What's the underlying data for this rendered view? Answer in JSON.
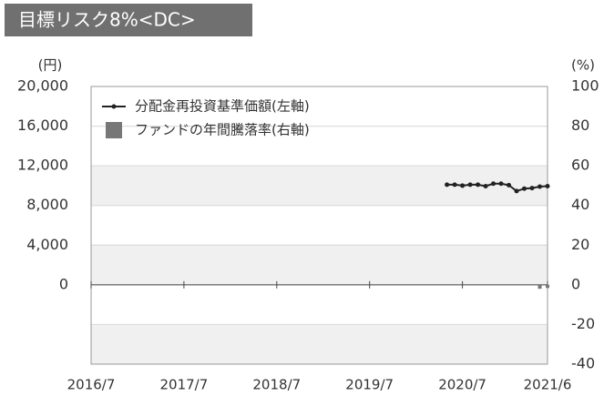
{
  "chart_data": {
    "type": "line",
    "title": "目標リスク8%<DC>",
    "y_label": "(円)",
    "y2_label": "(%)",
    "xlim": [
      "2016/7",
      "2021/6"
    ],
    "xticks": [
      "2016/7",
      "2017/7",
      "2018/7",
      "2019/7",
      "2020/7",
      "2021/6"
    ],
    "ylim": [
      -8000,
      20000
    ],
    "yticks": [
      0,
      {
        "value": 4000,
        "label": "4,000"
      },
      {
        "value": 8000,
        "label": "8,000"
      },
      {
        "value": 12000,
        "label": "12,000"
      },
      {
        "value": 16000,
        "label": "16,000"
      },
      {
        "value": 20000,
        "label": "20,000"
      }
    ],
    "y2lim": [
      -40,
      100
    ],
    "y2ticks": [
      -40,
      -20,
      0,
      20,
      40,
      60,
      80,
      100
    ],
    "grid": true,
    "legend": "top-left",
    "series": [
      {
        "name": "分配金再投資基準価額(左軸)",
        "type": "line",
        "color": "#222222",
        "x": [
          "2020/5",
          "2020/6",
          "2020/7",
          "2020/8",
          "2020/9",
          "2020/10",
          "2020/11",
          "2020/12",
          "2021/1",
          "2021/2",
          "2021/3",
          "2021/4",
          "2021/5",
          "2021/6"
        ],
        "values": [
          10100,
          10100,
          10000,
          10100,
          10100,
          9950,
          10200,
          10200,
          10050,
          9450,
          9700,
          9750,
          9900,
          9950
        ]
      },
      {
        "name": "ファンドの年間騰落率(右軸)",
        "type": "bar",
        "color": "#777777",
        "axis": "y2",
        "x": [
          "2021/5",
          "2021/6"
        ],
        "values": [
          -2,
          -1.5
        ]
      }
    ]
  }
}
